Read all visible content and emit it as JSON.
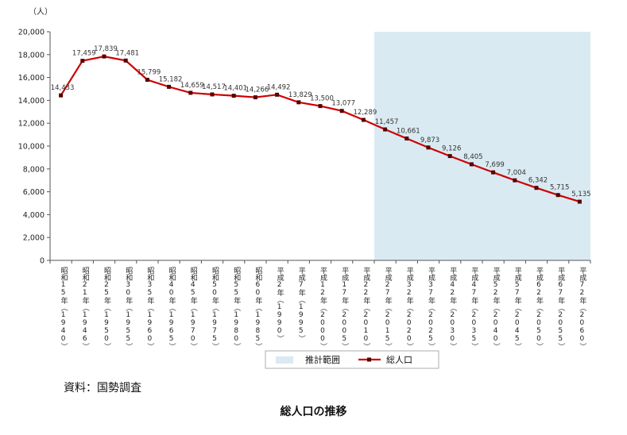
{
  "chart_data": {
    "type": "line",
    "unit_label": "（人）",
    "categories": [
      "昭和15年（1940）",
      "昭和21年（1946）",
      "昭和25年（1950）",
      "昭和30年（1955）",
      "昭和35年（1960）",
      "昭和40年（1965）",
      "昭和45年（1970）",
      "昭和50年（1975）",
      "昭和55年（1980）",
      "昭和60年（1985）",
      "平成2年（1990）",
      "平成7年（1995）",
      "平成12年（2000）",
      "平成17年（2005）",
      "平成22年（2010）",
      "平成27年（2015）",
      "平成32年（2020）",
      "平成37年（2025）",
      "平成42年（2030）",
      "平成47年（2035）",
      "平成52年（2040）",
      "平成57年（2045）",
      "平成62年（2050）",
      "平成67年（2055）",
      "平成72年（2060）"
    ],
    "series": [
      {
        "name": "総人口",
        "values": [
          14433,
          17459,
          17839,
          17481,
          15799,
          15182,
          14659,
          14517,
          14401,
          14266,
          14492,
          13829,
          13500,
          13077,
          12289,
          11457,
          10661,
          9873,
          9126,
          8405,
          7699,
          7004,
          6342,
          5715,
          5135
        ],
        "labels": [
          "14,433",
          "17,459",
          "17,839",
          "17,481",
          "15,799",
          "15,182",
          "14,659",
          "14,517",
          "14,401",
          "14,266",
          "14,492",
          "13,829",
          "13,500",
          "13,077",
          "12,289",
          "11,457",
          "10,661",
          "9,873",
          "9,126",
          "8,405",
          "7,699",
          "7,004",
          "6,342",
          "5,715",
          "5,135"
        ]
      }
    ],
    "ylim": [
      0,
      20000
    ],
    "yticks": [
      "0",
      "2,000",
      "4,000",
      "6,000",
      "8,000",
      "10,000",
      "12,000",
      "14,000",
      "16,000",
      "18,000",
      "20,000"
    ],
    "projection_start_index": 15,
    "legend": [
      "推計範囲",
      "総人口"
    ],
    "legend_position": "bottom",
    "colors": {
      "line": "#cc0000",
      "marker": "#550000",
      "projection": "#daeaf2",
      "axis": "#333333"
    }
  },
  "source_text": "資料：国勢調査",
  "title": "総人口の推移"
}
